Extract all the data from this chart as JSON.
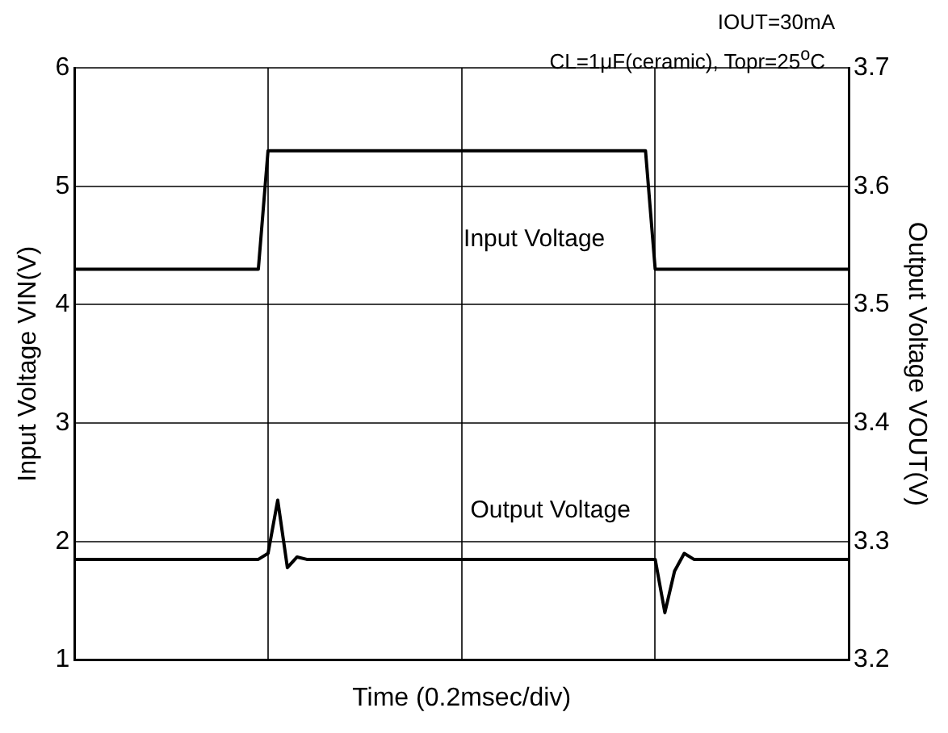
{
  "chart_data": {
    "type": "line",
    "annotations": [
      "IOUT=30mA",
      "CL=1μF(ceramic), Topr=25$^{o}$C"
    ],
    "xlabel": "Time (0.2msec/div)",
    "ylabel": "Input Voltage VIN(V)",
    "y2label": "Output Voltage VOUT(V)",
    "categories": [
      null,
      null,
      null,
      null,
      null,
      null,
      null,
      null,
      null,
      null,
      null,
      null,
      null,
      null,
      null,
      null,
      null,
      null,
      null,
      null,
      null,
      null,
      null,
      null,
      null,
      null,
      null,
      null,
      null,
      null,
      null,
      null,
      null,
      null,
      null,
      null,
      null,
      null,
      null,
      null,
      null,
      null,
      null,
      null,
      null,
      null,
      null,
      null,
      null,
      null,
      null,
      null,
      null,
      null,
      null,
      null,
      null,
      null,
      null,
      null,
      null,
      null,
      null,
      null,
      null,
      null,
      null,
      null,
      null,
      null,
      null,
      null,
      null,
      null,
      null,
      null,
      null,
      null,
      null,
      null,
      null
    ],
    "ylim": [
      1,
      6
    ],
    "yticks": [
      1,
      2,
      3,
      4,
      5,
      6
    ],
    "y2lim": [
      3.2,
      3.7
    ],
    "y2ticks": [
      3.2,
      3.3,
      3.4,
      3.5,
      3.6,
      3.7
    ],
    "series": [
      {
        "name": "Input Voltage",
        "color": "#000000",
        "values": [
          4.3,
          4.3,
          4.3,
          4.3,
          4.3,
          4.3,
          4.3,
          4.3,
          4.3,
          4.3,
          4.3,
          4.3,
          4.3,
          4.3,
          4.3,
          4.3,
          4.3,
          4.3,
          4.3,
          4.3,
          5.3,
          5.3,
          5.3,
          5.3,
          5.3,
          5.3,
          5.3,
          5.3,
          5.3,
          5.3,
          5.3,
          5.3,
          5.3,
          5.3,
          5.3,
          5.3,
          5.3,
          5.3,
          5.3,
          5.3,
          5.3,
          5.3,
          5.3,
          5.3,
          5.3,
          5.3,
          5.3,
          5.3,
          5.3,
          5.3,
          5.3,
          5.3,
          5.3,
          5.3,
          5.3,
          5.3,
          5.3,
          5.3,
          5.3,
          5.3,
          4.3,
          4.3,
          4.3,
          4.3,
          4.3,
          4.3,
          4.3,
          4.3,
          4.3,
          4.3,
          4.3,
          4.3,
          4.3,
          4.3,
          4.3,
          4.3,
          4.3,
          4.3,
          4.3,
          4.3,
          4.3
        ]
      },
      {
        "name": "Output Voltage",
        "color": "#000000",
        "axis": "y2",
        "values": [
          3.285,
          3.285,
          3.285,
          3.285,
          3.285,
          3.285,
          3.285,
          3.285,
          3.285,
          3.285,
          3.285,
          3.285,
          3.285,
          3.285,
          3.285,
          3.285,
          3.285,
          3.285,
          3.285,
          3.285,
          3.29,
          3.335,
          3.278,
          3.287,
          3.285,
          3.285,
          3.285,
          3.285,
          3.285,
          3.285,
          3.285,
          3.285,
          3.285,
          3.285,
          3.285,
          3.285,
          3.285,
          3.285,
          3.285,
          3.285,
          3.285,
          3.285,
          3.285,
          3.285,
          3.285,
          3.285,
          3.285,
          3.285,
          3.285,
          3.285,
          3.285,
          3.285,
          3.285,
          3.285,
          3.285,
          3.285,
          3.285,
          3.285,
          3.285,
          3.285,
          3.285,
          3.24,
          3.275,
          3.29,
          3.285,
          3.285,
          3.285,
          3.285,
          3.285,
          3.285,
          3.285,
          3.285,
          3.285,
          3.285,
          3.285,
          3.285,
          3.285,
          3.285,
          3.285,
          3.285,
          3.285
        ]
      }
    ],
    "grid": true,
    "legend": false,
    "marker": "none",
    "line_style": "solid",
    "tick_labels": "y"
  }
}
